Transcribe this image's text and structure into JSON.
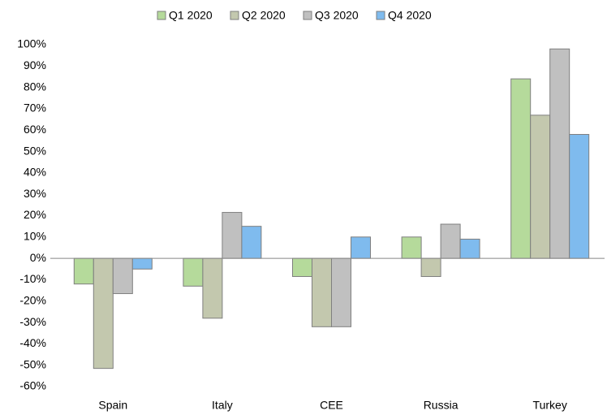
{
  "chart_data": {
    "type": "bar",
    "categories": [
      "Spain",
      "Italy",
      "CEE",
      "Russia",
      "Turkey"
    ],
    "series": [
      {
        "name": "Q1 2020",
        "color": "#b5da9b",
        "values": [
          -12,
          -13,
          -8.5,
          10,
          84
        ]
      },
      {
        "name": "Q2 2020",
        "color": "#c3c8ae",
        "values": [
          -51.5,
          -28,
          -32,
          -8.5,
          67
        ]
      },
      {
        "name": "Q3 2020",
        "color": "#c0c0c0",
        "values": [
          -16.5,
          21.5,
          -32,
          16,
          98
        ]
      },
      {
        "name": "Q4 2020",
        "color": "#7fbbee",
        "values": [
          -5,
          15,
          10,
          9,
          58
        ]
      }
    ],
    "ylim": [
      -60,
      100
    ],
    "yticks": [
      {
        "value": -60,
        "label": "-60%"
      },
      {
        "value": -50,
        "label": "-50%"
      },
      {
        "value": -40,
        "label": "-40%"
      },
      {
        "value": -30,
        "label": "-30%"
      },
      {
        "value": -20,
        "label": "-20%"
      },
      {
        "value": -10,
        "label": "-10%"
      },
      {
        "value": 0,
        "label": "0%"
      },
      {
        "value": 10,
        "label": "10%"
      },
      {
        "value": 20,
        "label": "20%"
      },
      {
        "value": 30,
        "label": "30%"
      },
      {
        "value": 40,
        "label": "40%"
      },
      {
        "value": 50,
        "label": "50%"
      },
      {
        "value": 60,
        "label": "60%"
      },
      {
        "value": 70,
        "label": "70%"
      },
      {
        "value": 80,
        "label": "80%"
      },
      {
        "value": 90,
        "label": "90%"
      },
      {
        "value": 100,
        "label": "100%"
      }
    ],
    "grid": false,
    "legend": "top"
  }
}
